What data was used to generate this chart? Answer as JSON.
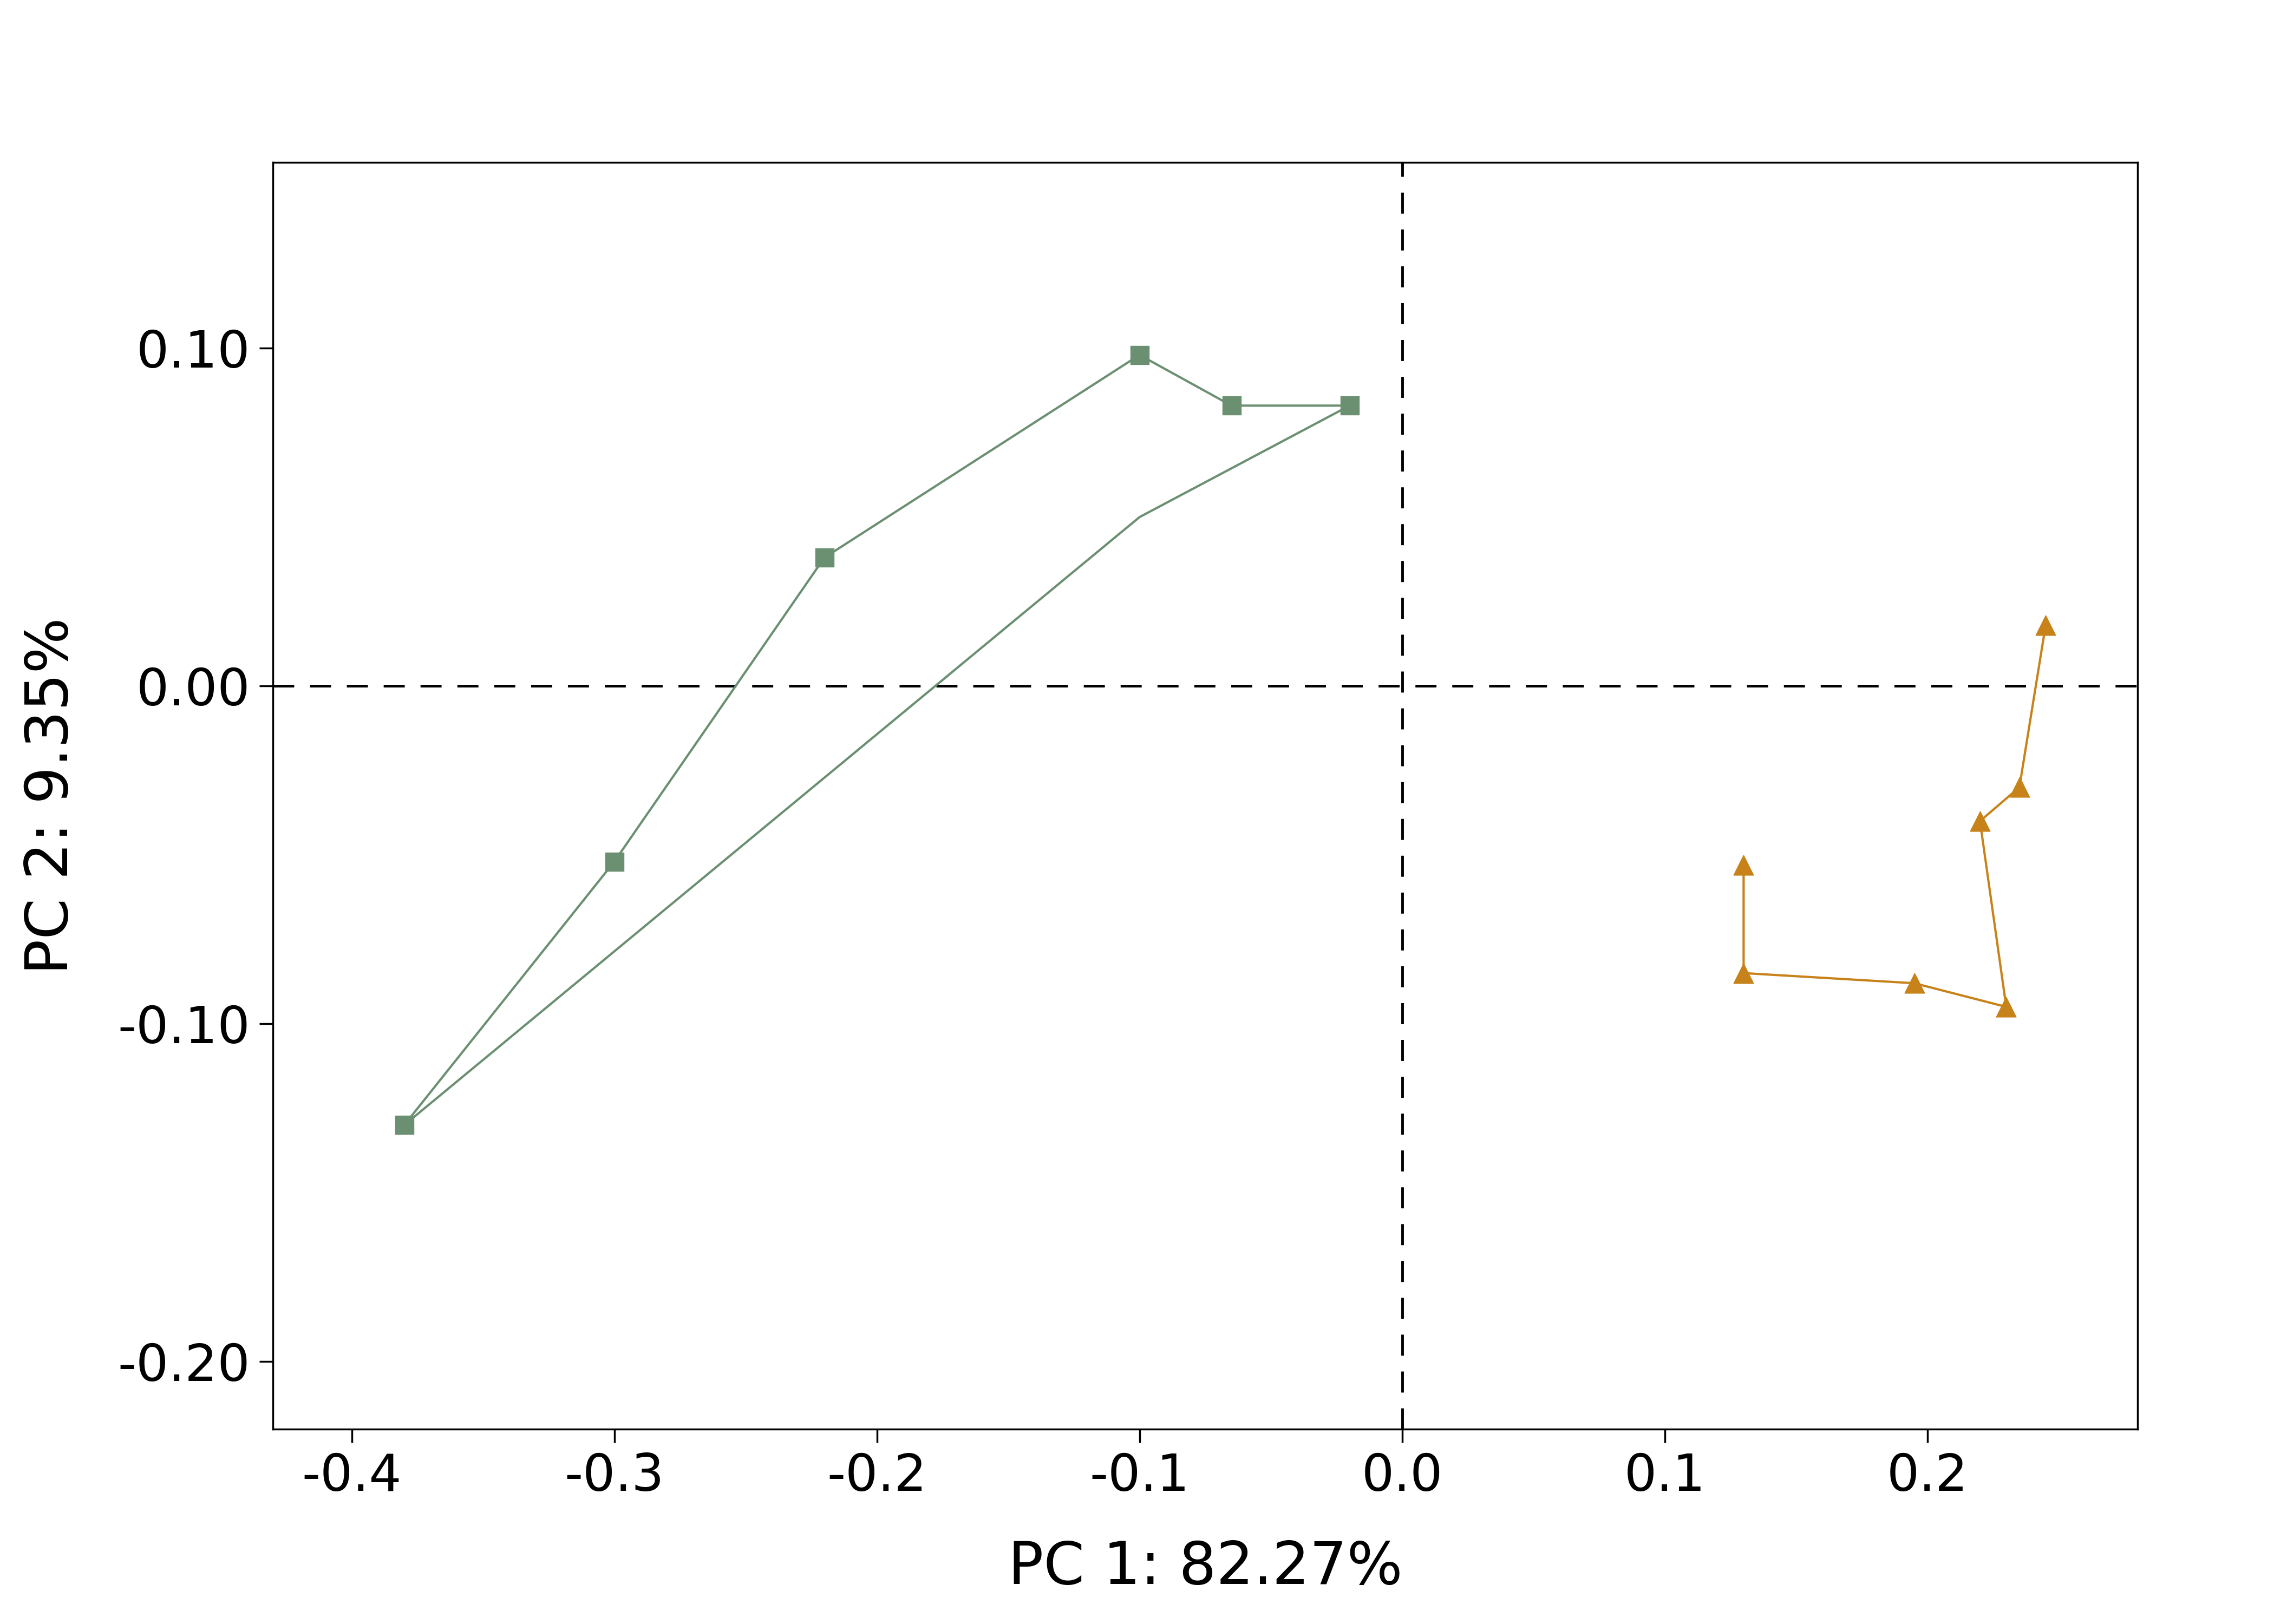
{
  "u_shaped_line1": {
    "x": [
      -0.38,
      -0.3,
      -0.22,
      -0.1,
      -0.065,
      -0.02
    ],
    "y": [
      -0.13,
      -0.052,
      0.038,
      0.098,
      0.083,
      0.083
    ]
  },
  "u_shaped_line2": {
    "x": [
      -0.38,
      -0.1,
      -0.065,
      -0.02
    ],
    "y": [
      -0.13,
      0.05,
      0.083,
      0.083
    ]
  },
  "u_shaped_points": {
    "x": [
      -0.38,
      -0.3,
      -0.22,
      -0.1,
      -0.065,
      -0.02
    ],
    "y": [
      -0.13,
      -0.052,
      0.038,
      0.098,
      0.083,
      0.083
    ]
  },
  "u_line_order": [
    [
      -0.38,
      -0.13
    ],
    [
      -0.3,
      -0.052
    ],
    [
      -0.22,
      0.038
    ],
    [
      -0.1,
      0.098
    ],
    [
      -0.065,
      0.083
    ],
    [
      -0.02,
      0.083
    ],
    [
      -0.1,
      0.05
    ],
    [
      -0.38,
      -0.13
    ]
  ],
  "v_line_order": [
    [
      0.13,
      -0.053
    ],
    [
      0.13,
      -0.085
    ],
    [
      0.195,
      -0.088
    ],
    [
      0.23,
      -0.095
    ],
    [
      0.22,
      -0.04
    ],
    [
      0.235,
      -0.03
    ],
    [
      0.245,
      0.018
    ]
  ],
  "u_color": "#6b8f71",
  "v_color": "#c8821a",
  "xlabel": "PC 1: 82.27%",
  "ylabel": "PC 2: 9.35%",
  "xlim": [
    -0.43,
    0.28
  ],
  "ylim": [
    -0.22,
    0.155
  ],
  "xticks": [
    -0.4,
    -0.3,
    -0.2,
    -0.1,
    0.0,
    0.1,
    0.2
  ],
  "yticks": [
    -0.2,
    -0.1,
    0.0,
    0.1
  ],
  "background_color": "#ffffff",
  "dashed_line_color": "#000000"
}
